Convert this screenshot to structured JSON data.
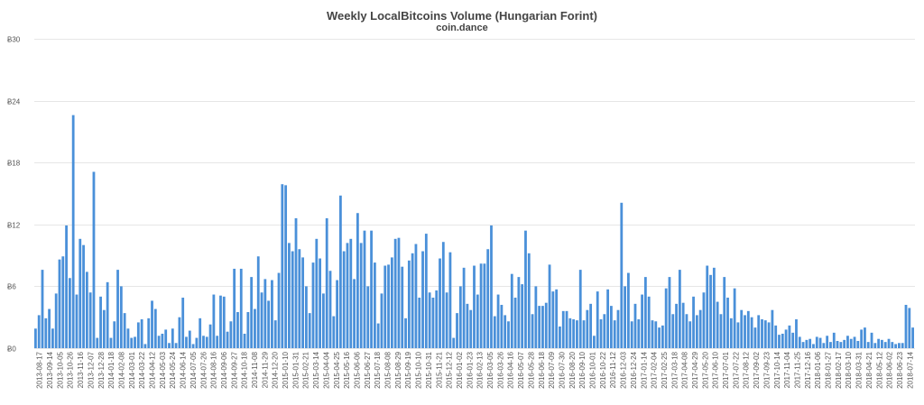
{
  "chart_data": {
    "type": "bar",
    "title": "Weekly LocalBitcoins Volume (Hungarian Forint)",
    "subtitle": "coin.dance",
    "xlabel": "",
    "ylabel": "",
    "ylim": [
      0,
      30
    ],
    "yticks": [
      {
        "value": 0,
        "label": "Ƀ0"
      },
      {
        "value": 6,
        "label": "Ƀ6"
      },
      {
        "value": 12,
        "label": "Ƀ12"
      },
      {
        "value": 18,
        "label": "Ƀ18"
      },
      {
        "value": 24,
        "label": "Ƀ24"
      },
      {
        "value": 30,
        "label": "Ƀ30"
      }
    ],
    "grid": true,
    "bar_color": "#4a90d9",
    "x_tick_labels": [
      "2013-08-17",
      "2013-09-14",
      "2013-10-05",
      "2013-10-26",
      "2013-11-16",
      "2013-12-07",
      "2013-12-28",
      "2014-01-18",
      "2014-02-08",
      "2014-03-01",
      "2014-03-22",
      "2014-04-12",
      "2014-05-03",
      "2014-05-24",
      "2014-06-14",
      "2014-07-05",
      "2014-07-26",
      "2014-08-16",
      "2014-09-06",
      "2014-09-27",
      "2014-10-18",
      "2014-11-08",
      "2014-11-29",
      "2014-12-20",
      "2015-01-10",
      "2015-01-31",
      "2015-02-21",
      "2015-03-14",
      "2015-04-04",
      "2015-04-25",
      "2015-05-16",
      "2015-06-06",
      "2015-06-27",
      "2015-07-18",
      "2015-08-08",
      "2015-08-29",
      "2015-09-19",
      "2015-10-10",
      "2015-10-31",
      "2015-11-21",
      "2015-12-12",
      "2016-01-02",
      "2016-01-23",
      "2016-02-13",
      "2016-03-05",
      "2016-03-26",
      "2016-04-16",
      "2016-05-07",
      "2016-05-28",
      "2016-06-18",
      "2016-07-09",
      "2016-07-30",
      "2016-08-20",
      "2016-09-10",
      "2016-10-01",
      "2016-10-22",
      "2016-11-12",
      "2016-12-03",
      "2016-12-24",
      "2017-01-14",
      "2017-02-04",
      "2017-02-25",
      "2017-03-18",
      "2017-04-08",
      "2017-04-29",
      "2017-05-20",
      "2017-06-10",
      "2017-07-01",
      "2017-07-22",
      "2017-08-12",
      "2017-09-02",
      "2017-09-23",
      "2017-10-14",
      "2017-11-04",
      "2017-11-25",
      "2017-12-16",
      "2018-01-06",
      "2018-01-27",
      "2018-02-17",
      "2018-03-10",
      "2018-03-31",
      "2018-04-21",
      "2018-05-12",
      "2018-06-02",
      "2018-06-23",
      "2018-07-14"
    ],
    "values": [
      1.9,
      3.2,
      7.6,
      2.9,
      3.8,
      1.9,
      5.3,
      8.6,
      8.9,
      11.9,
      6.8,
      22.6,
      5.2,
      10.6,
      10.0,
      7.4,
      5.4,
      17.1,
      1.0,
      5.0,
      3.7,
      6.4,
      1.0,
      2.6,
      7.6,
      6.0,
      3.4,
      1.9,
      1.0,
      1.1,
      2.5,
      2.8,
      0.4,
      2.9,
      4.6,
      3.8,
      1.2,
      1.4,
      1.8,
      0.5,
      1.9,
      0.5,
      3.0,
      4.9,
      1.1,
      1.7,
      0.4,
      1.0,
      2.9,
      1.2,
      1.1,
      2.3,
      5.2,
      1.2,
      5.1,
      5.0,
      1.6,
      2.6,
      7.7,
      3.5,
      7.7,
      1.4,
      3.5,
      6.9,
      3.8,
      8.9,
      5.4,
      6.7,
      4.6,
      6.6,
      2.7,
      7.3,
      15.9,
      15.8,
      10.2,
      9.4,
      12.6,
      9.6,
      8.8,
      6.0,
      3.4,
      8.3,
      10.6,
      8.7,
      5.3,
      12.6,
      7.5,
      3.1,
      6.6,
      14.8,
      9.4,
      10.2,
      10.6,
      6.7,
      13.1,
      10.2,
      11.4,
      6.0,
      11.4,
      8.3,
      2.4,
      5.3,
      8.0,
      8.1,
      8.8,
      10.6,
      10.7,
      7.9,
      2.9,
      8.5,
      9.2,
      10.1,
      4.9,
      9.4,
      11.1,
      5.4,
      4.9,
      5.6,
      8.7,
      10.3,
      5.4,
      9.3,
      1.0,
      3.4,
      6.0,
      7.8,
      4.3,
      3.7,
      8.0,
      5.2,
      8.2,
      8.2,
      9.6,
      11.9,
      3.1,
      5.2,
      4.2,
      3.2,
      2.6,
      7.2,
      4.9,
      6.9,
      6.2,
      11.4,
      9.2,
      3.3,
      6.0,
      4.1,
      4.1,
      4.4,
      8.1,
      5.5,
      5.7,
      2.1,
      3.6,
      3.6,
      2.9,
      2.8,
      2.7,
      7.6,
      2.7,
      3.7,
      4.3,
      1.2,
      5.5,
      2.8,
      3.3,
      5.7,
      4.1,
      2.7,
      3.7,
      14.1,
      6.0,
      7.3,
      2.6,
      4.3,
      2.8,
      5.2,
      6.9,
      5.0,
      2.7,
      2.6,
      2.0,
      2.2,
      5.8,
      6.9,
      3.3,
      4.3,
      7.6,
      4.4,
      3.3,
      2.6,
      5.0,
      3.2,
      3.7,
      5.4,
      8.0,
      7.1,
      7.8,
      4.5,
      3.3,
      6.9,
      4.9,
      2.9,
      5.8,
      2.5,
      3.7,
      3.2,
      3.6,
      3.0,
      2.0,
      3.2,
      2.8,
      2.7,
      2.5,
      3.7,
      2.2,
      1.3,
      1.4,
      1.8,
      2.2,
      1.5,
      2.8,
      1.1,
      0.6,
      0.8,
      0.9,
      0.4,
      1.1,
      1.0,
      0.5,
      1.2,
      0.6,
      1.5,
      0.7,
      0.6,
      0.8,
      1.2,
      0.9,
      1.1,
      0.7,
      1.8,
      2.0,
      0.6,
      1.5,
      0.5,
      0.9,
      0.8,
      0.6,
      0.9,
      0.6,
      0.4,
      0.5,
      0.5,
      4.2,
      3.9,
      2.0
    ]
  }
}
